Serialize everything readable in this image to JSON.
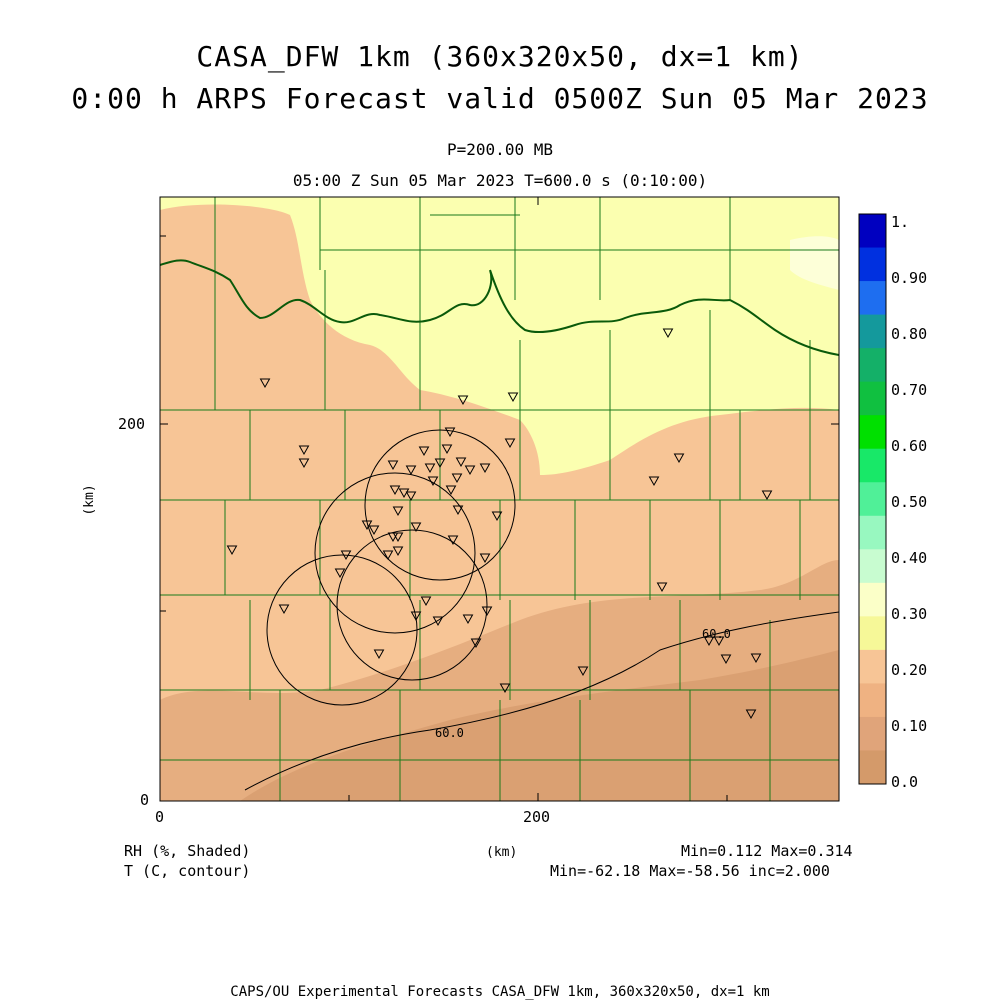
{
  "header": {
    "title_line1": "CASA_DFW 1km (360x320x50, dx=1 km)",
    "title_line2": "0:00 h ARPS Forecast valid 0500Z Sun 05 Mar 2023",
    "level": "P=200.00 MB",
    "time_info": "05:00 Z Sun 05 Mar 2023   T=600.0 s (0:10:00)"
  },
  "axes": {
    "x_label": "(km)",
    "y_label": "(km)",
    "x_ticks": [
      "0",
      "200"
    ],
    "y_ticks": [
      "0",
      "200"
    ]
  },
  "colorbar": {
    "labels": [
      "1.",
      "0.90",
      "0.80",
      "0.70",
      "0.60",
      "0.50",
      "0.40",
      "0.30",
      "0.20",
      "0.10",
      "0.0"
    ],
    "colors": [
      "#0000c0",
      "#0030e0",
      "#1e6ef0",
      "#14999c",
      "#14b068",
      "#10c040",
      "#00e000",
      "#18e868",
      "#50f098",
      "#98f8c0",
      "#c8fcd0",
      "#fbffc8",
      "#f6f898",
      "#f7c596",
      "#efb282",
      "#e0a47a",
      "#d49a6a"
    ]
  },
  "contour_labels": [
    "60.0",
    "60.0"
  ],
  "legend": {
    "field1": "RH (%, Shaded)",
    "field2": "T (C, contour)",
    "stats1": "Min=0.112 Max=0.314",
    "stats2": "Min=-62.18 Max=-58.56 inc=2.000",
    "x_unit": "(km)"
  },
  "footer": "CAPS/OU Experimental Forecasts  CASA_DFW 1km, 360x320x50, dx=1 km",
  "colors": {
    "rh_high": "#fbffb0",
    "rh_mid": "#f7c596",
    "rh_low": "#e0a878",
    "rh_lowest": "#d49b6d",
    "county_lines": "#1a7a1a",
    "state_line": "#0a5a0a"
  }
}
